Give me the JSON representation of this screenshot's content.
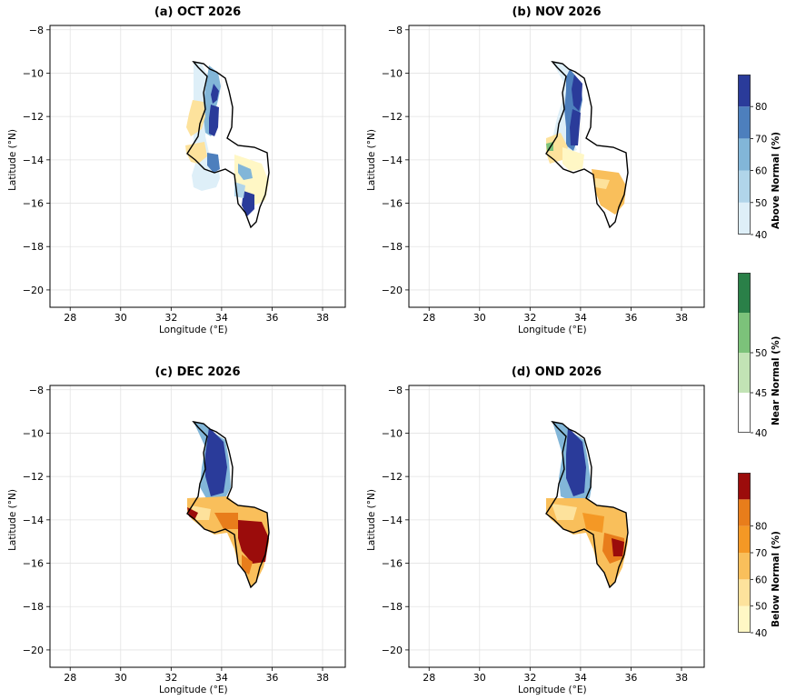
{
  "axes": {
    "xlabel": "Longitude (°E)",
    "ylabel": "Latitude (°N)",
    "xticks": [
      "28",
      "30",
      "32",
      "34",
      "36",
      "38"
    ],
    "yticks": [
      "−8",
      "−10",
      "−12",
      "−14",
      "−16",
      "−18",
      "−20"
    ],
    "xlim": [
      27.2,
      38.9
    ],
    "ylim": [
      -20.8,
      -7.8
    ]
  },
  "panels": [
    {
      "title": "(a) OCT 2026",
      "dominant": "Above Normal"
    },
    {
      "title": "(b) NOV 2026",
      "dominant": "Above Normal north, Below Normal south"
    },
    {
      "title": "(c) DEC 2026",
      "dominant": "Above Normal north, Below Normal south"
    },
    {
      "title": "(d) OND 2026",
      "dominant": "Above Normal north, Below Normal south"
    }
  ],
  "colorbars": [
    {
      "title": "Above Normal (%)",
      "ticks": [
        "40",
        "50",
        "60",
        "70",
        "80"
      ],
      "colors": [
        "#deeff8",
        "#b1d5ea",
        "#82b6d8",
        "#4d7fbd",
        "#2a3b9a"
      ]
    },
    {
      "title": "Near Normal (%)",
      "ticks": [
        "40",
        "45",
        "50"
      ],
      "colors": [
        "#ffffff",
        "#c2e3b5",
        "#7cc27a",
        "#2a8048"
      ]
    },
    {
      "title": "Below Normal (%)",
      "ticks": [
        "40",
        "50",
        "60",
        "70",
        "80"
      ],
      "colors": [
        "#fff7c5",
        "#fde29c",
        "#f9bf5b",
        "#f49825",
        "#e87d1b",
        "#9b0c0b"
      ]
    }
  ]
}
